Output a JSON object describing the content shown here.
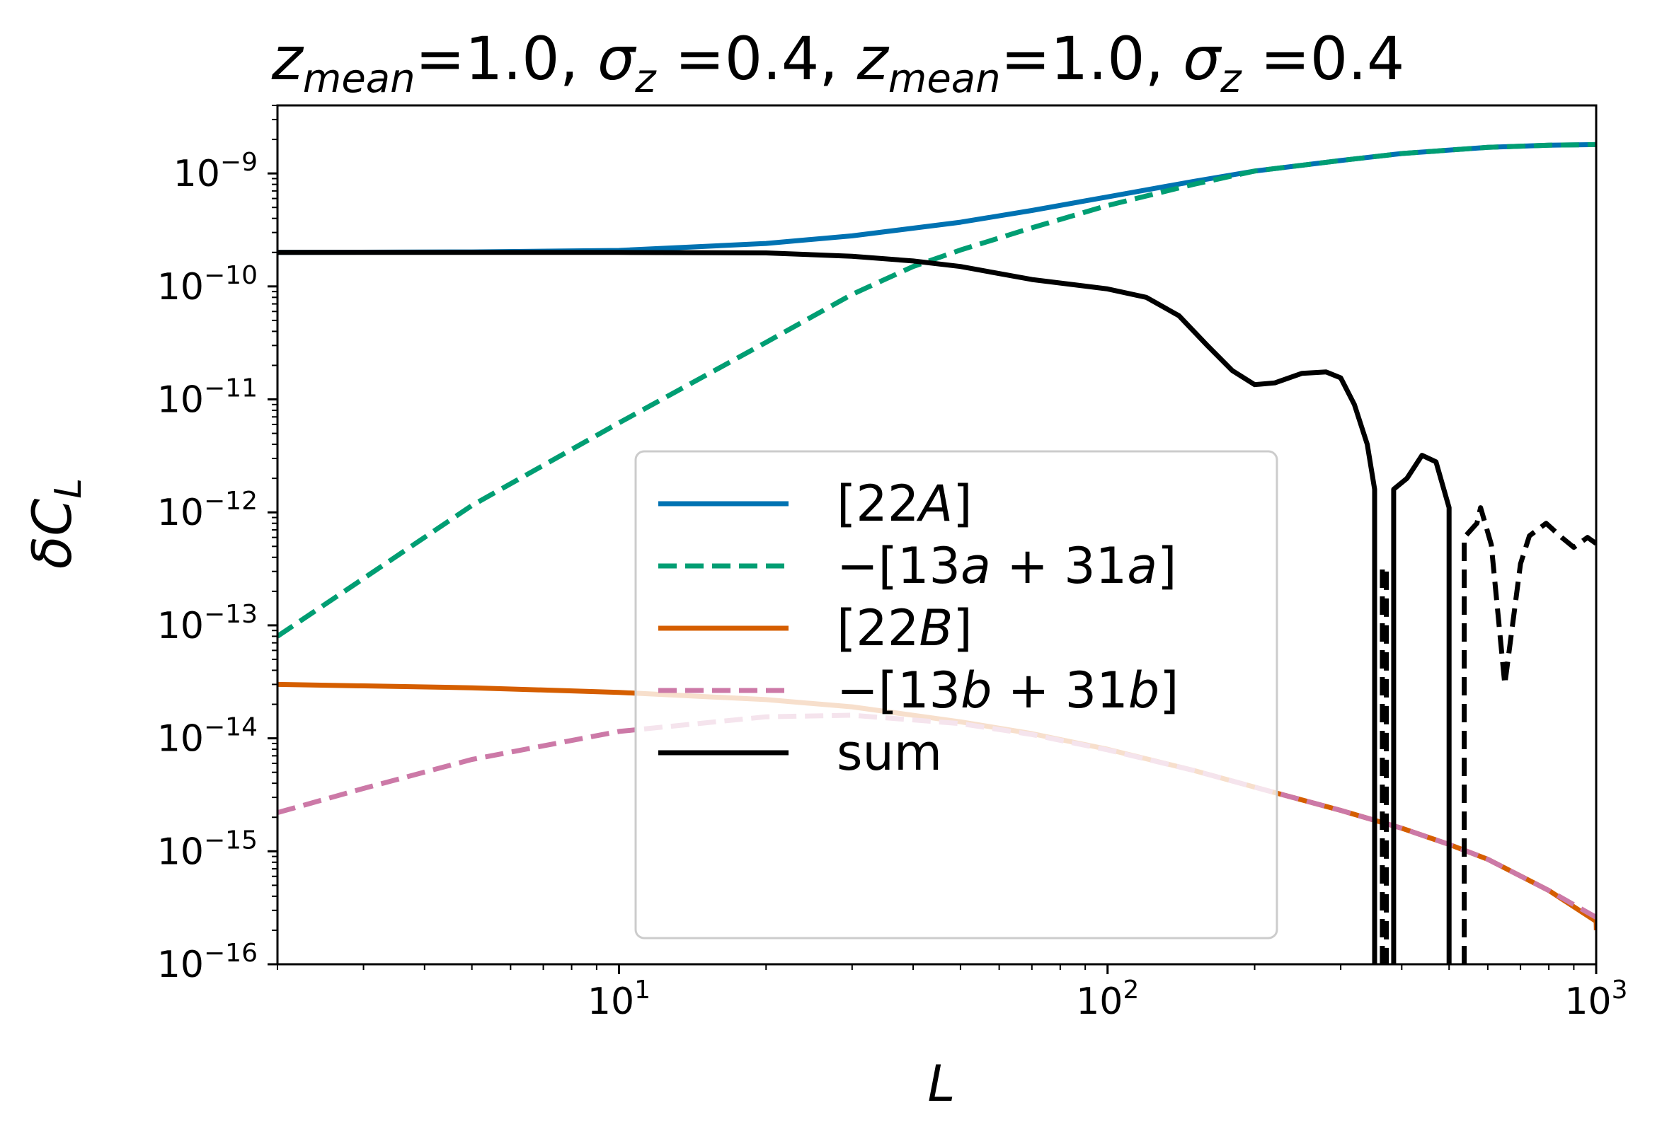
{
  "chart_data": {
    "type": "line",
    "title": "z_mean=1.0, σ_z =0.4, z_mean=1.0, σ_z =0.4",
    "title_parts": {
      "z1": "z",
      "sub1": "mean",
      "rest1": "=1.0, ",
      "s1": "σ",
      "subs1": "z",
      "rest2": " =0.4, ",
      "z2": "z",
      "sub2": "mean",
      "rest3": "=1.0, ",
      "s2": "σ",
      "subs2": "z",
      "rest4": " =0.4"
    },
    "xlabel": "L",
    "ylabel": "δC",
    "ylabel_sub": "L",
    "x_scale": "log",
    "y_scale": "log",
    "xlim": [
      2,
      1000
    ],
    "ylim": [
      1e-16,
      4e-09
    ],
    "x_ticks": [
      {
        "value": 10,
        "base": "10",
        "exp": "1"
      },
      {
        "value": 100,
        "base": "10",
        "exp": "2"
      },
      {
        "value": 1000,
        "base": "10",
        "exp": "3"
      }
    ],
    "y_ticks": [
      {
        "value": 1e-09,
        "base": "10",
        "exp": "−9"
      },
      {
        "value": 1e-10,
        "base": "10",
        "exp": "−10"
      },
      {
        "value": 1e-11,
        "base": "10",
        "exp": "−11"
      },
      {
        "value": 1e-12,
        "base": "10",
        "exp": "−12"
      },
      {
        "value": 1e-13,
        "base": "10",
        "exp": "−13"
      },
      {
        "value": 1e-14,
        "base": "10",
        "exp": "−14"
      },
      {
        "value": 1e-15,
        "base": "10",
        "exp": "−15"
      },
      {
        "value": 1e-16,
        "base": "10",
        "exp": "−16"
      }
    ],
    "legend_position": "lower-center",
    "series": [
      {
        "name": "[22A]",
        "label_parts": {
          "pre": "[22",
          "it": "A",
          "post": "]"
        },
        "color": "#0072b2",
        "dash": "solid",
        "segments": [
          [
            [
              2,
              2e-10
            ],
            [
              5,
              2.02e-10
            ],
            [
              10,
              2.08e-10
            ],
            [
              20,
              2.4e-10
            ],
            [
              30,
              2.8e-10
            ],
            [
              50,
              3.7e-10
            ],
            [
              70,
              4.7e-10
            ],
            [
              100,
              6.2e-10
            ],
            [
              150,
              8.5e-10
            ],
            [
              200,
              1.05e-09
            ],
            [
              300,
              1.3e-09
            ],
            [
              400,
              1.5e-09
            ],
            [
              600,
              1.7e-09
            ],
            [
              800,
              1.78e-09
            ],
            [
              1000,
              1.8e-09
            ]
          ]
        ]
      },
      {
        "name": "−[13a+31a]",
        "label_parts": {
          "pre": "−[13",
          "it": "a",
          "mid": " + 31",
          "it2": "a",
          "post": "]"
        },
        "color": "#009e73",
        "dash": "dashed",
        "segments": [
          [
            [
              2,
              8e-14
            ],
            [
              3,
              2.6e-13
            ],
            [
              5,
              1.15e-12
            ],
            [
              10,
              6.2e-12
            ],
            [
              20,
              3.2e-11
            ],
            [
              30,
              8.5e-11
            ],
            [
              40,
              1.5e-10
            ],
            [
              50,
              2.1e-10
            ],
            [
              70,
              3.3e-10
            ],
            [
              100,
              5.2e-10
            ],
            [
              150,
              8e-10
            ],
            [
              200,
              1.05e-09
            ],
            [
              300,
              1.3e-09
            ],
            [
              400,
              1.5e-09
            ],
            [
              600,
              1.7e-09
            ],
            [
              800,
              1.78e-09
            ],
            [
              1000,
              1.8e-09
            ]
          ]
        ]
      },
      {
        "name": "[22B]",
        "label_parts": {
          "pre": "[22",
          "it": "B",
          "post": "]"
        },
        "color": "#d55e00",
        "dash": "solid",
        "segments": [
          [
            [
              2,
              3e-14
            ],
            [
              5,
              2.8e-14
            ],
            [
              10,
              2.55e-14
            ],
            [
              20,
              2.2e-14
            ],
            [
              30,
              1.9e-14
            ],
            [
              50,
              1.4e-14
            ],
            [
              70,
              1.1e-14
            ],
            [
              100,
              8e-15
            ],
            [
              150,
              5.2e-15
            ],
            [
              200,
              3.7e-15
            ],
            [
              300,
              2.3e-15
            ],
            [
              400,
              1.6e-15
            ],
            [
              500,
              1.15e-15
            ],
            [
              600,
              8.5e-16
            ],
            [
              800,
              4.5e-16
            ],
            [
              1000,
              2.4e-16
            ],
            [
              1001,
              2e-16
            ]
          ]
        ]
      },
      {
        "name": "−[13b+31b]",
        "label_parts": {
          "pre": "−[13",
          "it": "b",
          "mid": " + 31",
          "it2": "b",
          "post": "]"
        },
        "color": "#cc79a7",
        "dash": "dashed",
        "segments": [
          [
            [
              2,
              2.2e-15
            ],
            [
              3,
              3.6e-15
            ],
            [
              5,
              6.5e-15
            ],
            [
              10,
              1.15e-14
            ],
            [
              20,
              1.55e-14
            ],
            [
              30,
              1.6e-14
            ],
            [
              50,
              1.35e-14
            ],
            [
              70,
              1.08e-14
            ],
            [
              100,
              7.9e-15
            ],
            [
              150,
              5.2e-15
            ],
            [
              200,
              3.7e-15
            ],
            [
              300,
              2.3e-15
            ],
            [
              400,
              1.6e-15
            ],
            [
              500,
              1.15e-15
            ],
            [
              600,
              8.5e-16
            ],
            [
              800,
              4.5e-16
            ],
            [
              1000,
              2.6e-16
            ]
          ]
        ]
      },
      {
        "name": "sum",
        "label_parts": {
          "pre": "sum",
          "it": "",
          "post": ""
        },
        "color": "#000000",
        "dash": "solid",
        "segments": [
          [
            [
              2,
              2e-10
            ],
            [
              5,
              2e-10
            ],
            [
              10,
              2e-10
            ],
            [
              20,
              1.98e-10
            ],
            [
              30,
              1.85e-10
            ],
            [
              40,
              1.68e-10
            ],
            [
              50,
              1.5e-10
            ],
            [
              70,
              1.15e-10
            ],
            [
              100,
              9.5e-11
            ],
            [
              120,
              8e-11
            ],
            [
              140,
              5.5e-11
            ],
            [
              160,
              3e-11
            ],
            [
              180,
              1.8e-11
            ],
            [
              200,
              1.35e-11
            ],
            [
              220,
              1.4e-11
            ],
            [
              250,
              1.7e-11
            ],
            [
              280,
              1.75e-11
            ],
            [
              300,
              1.55e-11
            ],
            [
              320,
              9e-12
            ],
            [
              340,
              4e-12
            ],
            [
              352,
              1.6e-12
            ],
            [
              352,
              1e-16
            ]
          ],
          [
            [
              385,
              1e-16
            ],
            [
              385,
              1.6e-12
            ],
            [
              410,
              2e-12
            ],
            [
              440,
              3.2e-12
            ],
            [
              470,
              2.8e-12
            ],
            [
              500,
              1.1e-12
            ],
            [
              500,
              1e-16
            ]
          ]
        ]
      },
      {
        "name": "sum (negative)",
        "color": "#000000",
        "dash": "dashed",
        "in_legend": false,
        "segments": [
          [
            [
              365,
              1e-16
            ],
            [
              365,
              3.2e-13
            ],
            [
              372,
              3.2e-13
            ],
            [
              372,
              1e-16
            ]
          ],
          [
            [
              537,
              1e-16
            ],
            [
              537,
              6e-13
            ],
            [
              570,
              8e-13
            ],
            [
              580,
              1.1e-12
            ],
            [
              610,
              5.2e-13
            ],
            [
              650,
              3e-14
            ],
            [
              700,
              3.5e-13
            ],
            [
              730,
              6.2e-13
            ],
            [
              790,
              8e-13
            ],
            [
              850,
              6e-13
            ],
            [
              900,
              4.9e-13
            ],
            [
              960,
              6e-13
            ],
            [
              1000,
              5.3e-13
            ]
          ]
        ]
      }
    ]
  }
}
